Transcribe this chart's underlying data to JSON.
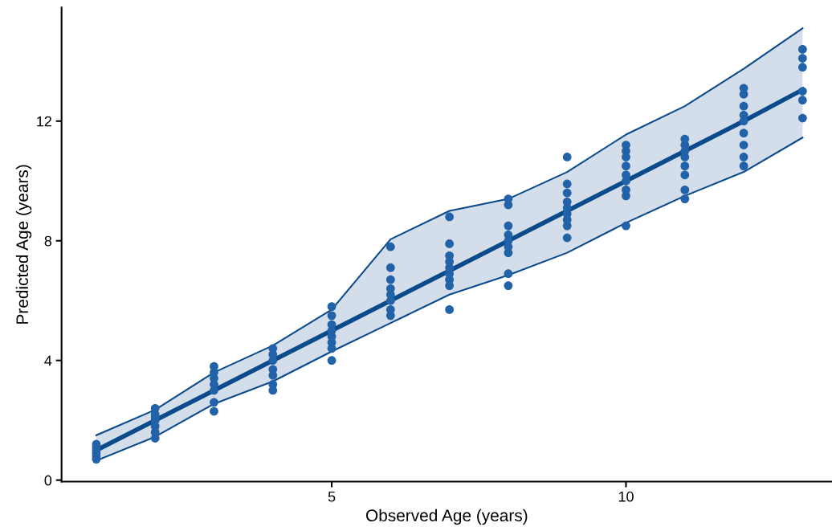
{
  "chart_data": {
    "type": "scatter",
    "xlabel": "Observed Age (years)",
    "ylabel": "Predicted Age (years)",
    "xlim": [
      0.41,
      13.5
    ],
    "ylim": [
      -0.05,
      15.8
    ],
    "xticks": [
      5,
      10
    ],
    "yticks": [
      0,
      4,
      8,
      12
    ],
    "grid": false,
    "series": [
      {
        "type": "line",
        "color": "#0b4a8b",
        "x": [
          1,
          2,
          3,
          4,
          5,
          6,
          7,
          8,
          9,
          10,
          11,
          12,
          13
        ],
        "values": [
          0.65,
          1.45,
          2.55,
          3.3,
          4.3,
          5.25,
          6.2,
          6.85,
          7.6,
          8.6,
          9.5,
          10.3,
          11.45
        ]
      },
      {
        "type": "line",
        "color": "#0b4a8b",
        "x": [
          1,
          2,
          3,
          4,
          5,
          6,
          7,
          8,
          9,
          10,
          11,
          12,
          13
        ],
        "values": [
          1.5,
          2.35,
          3.6,
          4.5,
          5.7,
          8.05,
          9.0,
          9.4,
          10.3,
          11.55,
          12.5,
          13.75,
          15.1
        ]
      },
      {
        "type": "line",
        "color": "#0b4a8b",
        "x": [
          1,
          2,
          3,
          4,
          5,
          6,
          7,
          8,
          9,
          10,
          11,
          12,
          13
        ],
        "values": [
          1.0,
          2.0,
          3.0,
          4.0,
          5.0,
          6.0,
          7.0,
          8.0,
          9.0,
          10.0,
          11.0,
          12.0,
          13.05
        ],
        "lower": [
          0.65,
          1.45,
          2.55,
          3.3,
          4.3,
          5.25,
          6.2,
          6.85,
          7.6,
          8.6,
          9.5,
          10.3,
          11.45
        ],
        "upper": [
          1.5,
          2.35,
          3.6,
          4.5,
          5.7,
          8.05,
          9.0,
          9.4,
          10.3,
          11.55,
          12.5,
          13.75,
          15.1
        ]
      },
      {
        "color": "#2262a8",
        "marker": "circle",
        "x": [
          1,
          1,
          1,
          1,
          1,
          1,
          2,
          2,
          2,
          2,
          2,
          2,
          2,
          3,
          3,
          3,
          3,
          3,
          3,
          3,
          4,
          4,
          4,
          4,
          4,
          4,
          4,
          5,
          5,
          5,
          5,
          5,
          5,
          5,
          5,
          6,
          6,
          6,
          6,
          6,
          6,
          6,
          6,
          7,
          7,
          7,
          7,
          7,
          7,
          7,
          7,
          7,
          8,
          8,
          8,
          8,
          8,
          8,
          8,
          8,
          8,
          9,
          9,
          9,
          9,
          9,
          9,
          9,
          9,
          9,
          10,
          10,
          10,
          10,
          10,
          10,
          10,
          10,
          10,
          11,
          11,
          11,
          11,
          11,
          11,
          11,
          11,
          12,
          12,
          12,
          12,
          12,
          12,
          12,
          12,
          12,
          13,
          13,
          13,
          13,
          13,
          13
        ],
        "values": [
          0.7,
          0.8,
          0.9,
          1.0,
          1.1,
          1.2,
          1.4,
          1.6,
          1.8,
          2.0,
          2.1,
          2.2,
          2.4,
          2.3,
          2.6,
          3.0,
          3.2,
          3.4,
          3.6,
          3.8,
          3.0,
          3.2,
          3.5,
          3.7,
          4.0,
          4.2,
          4.4,
          4.0,
          4.4,
          4.6,
          4.8,
          5.0,
          5.2,
          5.5,
          5.8,
          5.5,
          5.7,
          6.0,
          6.2,
          6.4,
          6.7,
          7.1,
          7.8,
          5.7,
          6.5,
          6.7,
          6.9,
          7.1,
          7.3,
          7.5,
          7.9,
          8.8,
          6.5,
          6.9,
          7.6,
          7.8,
          8.0,
          8.2,
          8.5,
          9.2,
          9.4,
          8.1,
          8.5,
          8.7,
          8.9,
          9.1,
          9.3,
          9.6,
          9.9,
          10.8,
          8.5,
          9.5,
          9.7,
          10.0,
          10.2,
          10.5,
          10.8,
          11.0,
          11.2,
          9.4,
          9.7,
          10.2,
          10.5,
          10.8,
          11.0,
          11.2,
          11.4,
          10.5,
          10.8,
          11.2,
          11.6,
          12.0,
          12.2,
          12.5,
          12.9,
          13.1,
          12.1,
          12.7,
          13.0,
          13.8,
          14.1,
          14.4
        ]
      }
    ]
  }
}
